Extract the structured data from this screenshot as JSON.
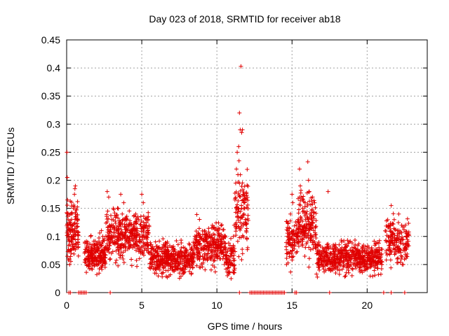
{
  "chart_data": {
    "type": "scatter",
    "title": "Day 023 of 2018, SRMTID for receiver ab18",
    "xlabel": "GPS time / hours",
    "ylabel": "SRMTID / TECUs",
    "xlim": [
      0,
      24
    ],
    "ylim": [
      0,
      0.45
    ],
    "xticks": [
      0,
      5,
      10,
      15,
      20
    ],
    "xtick_labels": [
      "0",
      "5",
      "10",
      "15",
      "20"
    ],
    "yticks": [
      0,
      0.05,
      0.1,
      0.15,
      0.2,
      0.25,
      0.3,
      0.35,
      0.4,
      0.45
    ],
    "ytick_labels": [
      "0",
      "0.05",
      "0.1",
      "0.15",
      "0.2",
      "0.25",
      "0.3",
      "0.35",
      "0.4",
      "0.45"
    ],
    "grid": true,
    "marker": "+",
    "marker_color": "#e00000",
    "series": [
      {
        "name": "SRMTID",
        "points": [
          [
            0.02,
            0.25
          ],
          [
            0.04,
            0.205
          ],
          [
            0.06,
            0.165
          ],
          [
            0.1,
            0.13
          ],
          [
            0.12,
            0.095
          ],
          [
            0.15,
            0.075
          ],
          [
            0.18,
            0.06
          ],
          [
            0.2,
            0.05
          ],
          [
            0.22,
            0.085
          ],
          [
            0.25,
            0.11
          ],
          [
            0.28,
            0.14
          ],
          [
            0.3,
            0.07
          ],
          [
            0.35,
            0.09
          ],
          [
            0.4,
            0.12
          ],
          [
            0.45,
            0.15
          ],
          [
            0.5,
            0.1
          ],
          [
            0.52,
            0.175
          ],
          [
            0.55,
            0.185
          ],
          [
            0.58,
            0.19
          ],
          [
            0.6,
            0.14
          ],
          [
            0.65,
            0.11
          ],
          [
            0.7,
            0.13
          ],
          [
            0.75,
            0.09
          ],
          [
            1.2,
            0.07
          ],
          [
            1.3,
            0.06
          ],
          [
            1.35,
            0.08
          ],
          [
            1.4,
            0.09
          ],
          [
            1.5,
            0.065
          ],
          [
            1.6,
            0.1
          ],
          [
            1.7,
            0.075
          ],
          [
            1.8,
            0.085
          ],
          [
            1.9,
            0.06
          ],
          [
            2.0,
            0.05
          ],
          [
            2.1,
            0.09
          ],
          [
            2.2,
            0.07
          ],
          [
            2.3,
            0.045
          ],
          [
            2.4,
            0.1
          ],
          [
            2.5,
            0.055
          ],
          [
            2.6,
            0.08
          ],
          [
            2.7,
            0.18
          ],
          [
            2.8,
            0.17
          ],
          [
            2.9,
            0.06
          ],
          [
            3.0,
            0.13
          ],
          [
            3.1,
            0.15
          ],
          [
            3.2,
            0.09
          ],
          [
            3.3,
            0.11
          ],
          [
            3.4,
            0.08
          ],
          [
            3.5,
            0.12
          ],
          [
            3.6,
            0.175
          ],
          [
            3.7,
            0.14
          ],
          [
            3.8,
            0.16
          ],
          [
            3.9,
            0.1
          ],
          [
            4.0,
            0.13
          ],
          [
            4.1,
            0.09
          ],
          [
            4.2,
            0.11
          ],
          [
            4.3,
            0.12
          ],
          [
            4.4,
            0.08
          ],
          [
            4.5,
            0.1
          ],
          [
            4.6,
            0.14
          ],
          [
            4.7,
            0.11
          ],
          [
            4.8,
            0.13
          ],
          [
            4.9,
            0.09
          ],
          [
            5.0,
            0.175
          ],
          [
            5.1,
            0.16
          ],
          [
            5.2,
            0.12
          ],
          [
            5.3,
            0.1
          ],
          [
            5.4,
            0.085
          ],
          [
            5.5,
            0.07
          ],
          [
            5.6,
            0.06
          ],
          [
            5.7,
            0.05
          ],
          [
            5.8,
            0.065
          ],
          [
            5.9,
            0.075
          ],
          [
            6.0,
            0.045
          ],
          [
            6.1,
            0.08
          ],
          [
            6.2,
            0.05
          ],
          [
            6.3,
            0.06
          ],
          [
            6.4,
            0.035
          ],
          [
            6.5,
            0.07
          ],
          [
            6.6,
            0.055
          ],
          [
            6.7,
            0.09
          ],
          [
            6.8,
            0.06
          ],
          [
            6.9,
            0.05
          ],
          [
            7.0,
            0.08
          ],
          [
            7.1,
            0.065
          ],
          [
            7.2,
            0.045
          ],
          [
            7.3,
            0.055
          ],
          [
            7.4,
            0.07
          ],
          [
            7.5,
            0.05
          ],
          [
            7.6,
            0.04
          ],
          [
            7.7,
            0.06
          ],
          [
            7.8,
            0.035
          ],
          [
            7.9,
            0.075
          ],
          [
            8.0,
            0.055
          ],
          [
            8.1,
            0.065
          ],
          [
            8.2,
            0.05
          ],
          [
            8.3,
            0.08
          ],
          [
            8.4,
            0.045
          ],
          [
            8.5,
            0.07
          ],
          [
            8.6,
            0.09
          ],
          [
            8.7,
            0.06
          ],
          [
            8.8,
            0.075
          ],
          [
            8.9,
            0.1
          ],
          [
            9.0,
            0.08
          ],
          [
            9.1,
            0.06
          ],
          [
            9.2,
            0.11
          ],
          [
            9.3,
            0.09
          ],
          [
            9.4,
            0.07
          ],
          [
            9.5,
            0.1
          ],
          [
            9.6,
            0.085
          ],
          [
            9.7,
            0.12
          ],
          [
            9.8,
            0.095
          ],
          [
            9.9,
            0.075
          ],
          [
            10.0,
            0.11
          ],
          [
            10.1,
            0.09
          ],
          [
            10.2,
            0.07
          ],
          [
            10.3,
            0.08
          ],
          [
            10.4,
            0.06
          ],
          [
            10.5,
            0.05
          ],
          [
            10.6,
            0.055
          ],
          [
            10.7,
            0.03
          ],
          [
            10.8,
            0.045
          ],
          [
            10.9,
            0.065
          ],
          [
            11.0,
            0.08
          ],
          [
            11.1,
            0.1
          ],
          [
            11.15,
            0.12
          ],
          [
            11.2,
            0.165
          ],
          [
            11.25,
            0.195
          ],
          [
            11.3,
            0.22
          ],
          [
            11.35,
            0.25
          ],
          [
            11.4,
            0.21
          ],
          [
            11.45,
            0.26
          ],
          [
            11.5,
            0.32
          ],
          [
            11.55,
            0.29
          ],
          [
            11.6,
            0.403
          ],
          [
            11.65,
            0.285
          ],
          [
            11.7,
            0.29
          ],
          [
            11.75,
            0.175
          ],
          [
            11.8,
            0.14
          ],
          [
            11.85,
            0.15
          ],
          [
            11.9,
            0.13
          ],
          [
            11.95,
            0.11
          ],
          [
            12.0,
            0.095
          ],
          [
            12.05,
            0.08
          ],
          [
            14.7,
            0.07
          ],
          [
            14.8,
            0.09
          ],
          [
            14.9,
            0.14
          ],
          [
            15.0,
            0.175
          ],
          [
            15.05,
            0.16
          ],
          [
            15.1,
            0.11
          ],
          [
            15.2,
            0.09
          ],
          [
            15.3,
            0.12
          ],
          [
            15.4,
            0.13
          ],
          [
            15.5,
            0.22
          ],
          [
            15.55,
            0.19
          ],
          [
            15.6,
            0.17
          ],
          [
            15.7,
            0.15
          ],
          [
            15.8,
            0.11
          ],
          [
            15.9,
            0.13
          ],
          [
            16.0,
            0.12
          ],
          [
            16.05,
            0.233
          ],
          [
            16.1,
            0.2
          ],
          [
            16.15,
            0.18
          ],
          [
            16.2,
            0.14
          ],
          [
            16.3,
            0.12
          ],
          [
            16.4,
            0.1
          ],
          [
            16.5,
            0.09
          ],
          [
            16.6,
            0.08
          ],
          [
            16.7,
            0.07
          ],
          [
            16.8,
            0.085
          ],
          [
            16.9,
            0.06
          ],
          [
            17.0,
            0.07
          ],
          [
            17.1,
            0.05
          ],
          [
            17.2,
            0.08
          ],
          [
            17.3,
            0.065
          ],
          [
            17.4,
            0.18
          ],
          [
            17.5,
            0.06
          ],
          [
            17.6,
            0.07
          ],
          [
            17.7,
            0.04
          ],
          [
            17.8,
            0.055
          ],
          [
            17.9,
            0.045
          ],
          [
            18.0,
            0.06
          ],
          [
            18.1,
            0.075
          ],
          [
            18.2,
            0.05
          ],
          [
            18.3,
            0.09
          ],
          [
            18.4,
            0.065
          ],
          [
            18.5,
            0.08
          ],
          [
            18.6,
            0.07
          ],
          [
            18.7,
            0.055
          ],
          [
            18.8,
            0.09
          ],
          [
            18.9,
            0.06
          ],
          [
            19.0,
            0.075
          ],
          [
            19.1,
            0.05
          ],
          [
            19.2,
            0.085
          ],
          [
            19.3,
            0.06
          ],
          [
            19.4,
            0.07
          ],
          [
            19.5,
            0.04
          ],
          [
            19.6,
            0.065
          ],
          [
            19.7,
            0.08
          ],
          [
            19.8,
            0.06
          ],
          [
            19.9,
            0.05
          ],
          [
            20.0,
            0.075
          ],
          [
            20.1,
            0.06
          ],
          [
            20.2,
            0.045
          ],
          [
            20.3,
            0.08
          ],
          [
            20.4,
            0.065
          ],
          [
            20.5,
            0.055
          ],
          [
            20.6,
            0.07
          ],
          [
            20.7,
            0.05
          ],
          [
            20.8,
            0.065
          ],
          [
            21.2,
            0.11
          ],
          [
            21.3,
            0.09
          ],
          [
            21.4,
            0.12
          ],
          [
            21.5,
            0.08
          ],
          [
            21.6,
            0.155
          ],
          [
            21.7,
            0.1
          ],
          [
            21.8,
            0.13
          ],
          [
            21.9,
            0.07
          ],
          [
            22.0,
            0.06
          ],
          [
            22.1,
            0.14
          ],
          [
            22.2,
            0.09
          ],
          [
            22.3,
            0.12
          ],
          [
            22.4,
            0.05
          ],
          [
            22.5,
            0.075
          ],
          [
            22.6,
            0.1
          ],
          [
            22.7,
            0.085
          ]
        ]
      },
      {
        "name": "zero-value markers",
        "points": [
          [
            0.15,
            0
          ],
          [
            0.25,
            0
          ],
          [
            0.8,
            0
          ],
          [
            0.9,
            0
          ],
          [
            1.0,
            0
          ],
          [
            1.1,
            0
          ],
          [
            1.2,
            0
          ],
          [
            1.3,
            0
          ],
          [
            2.9,
            0
          ],
          [
            11.5,
            0
          ],
          [
            12.2,
            0
          ],
          [
            12.3,
            0
          ],
          [
            12.4,
            0
          ],
          [
            12.5,
            0
          ],
          [
            12.6,
            0
          ],
          [
            12.7,
            0
          ],
          [
            12.8,
            0
          ],
          [
            12.9,
            0
          ],
          [
            13.0,
            0
          ],
          [
            13.1,
            0
          ],
          [
            13.2,
            0
          ],
          [
            13.3,
            0
          ],
          [
            13.4,
            0
          ],
          [
            13.5,
            0
          ],
          [
            13.6,
            0
          ],
          [
            13.7,
            0
          ],
          [
            13.8,
            0
          ],
          [
            13.9,
            0
          ],
          [
            14.0,
            0
          ],
          [
            14.1,
            0
          ],
          [
            14.2,
            0
          ],
          [
            14.3,
            0
          ],
          [
            14.4,
            0
          ],
          [
            14.5,
            0
          ],
          [
            15.2,
            0
          ],
          [
            15.3,
            0
          ],
          [
            17.5,
            0
          ],
          [
            21.1,
            0
          ],
          [
            21.6,
            0
          ],
          [
            22.5,
            0
          ]
        ]
      }
    ],
    "bands": [
      {
        "x_start": 0.0,
        "x_end": 0.8,
        "center": 0.11,
        "spread": 0.05,
        "count": 120
      },
      {
        "x_start": 1.2,
        "x_end": 2.6,
        "center": 0.068,
        "spread": 0.03,
        "count": 200
      },
      {
        "x_start": 2.6,
        "x_end": 5.5,
        "center": 0.1,
        "spread": 0.04,
        "count": 380
      },
      {
        "x_start": 5.5,
        "x_end": 8.5,
        "center": 0.06,
        "spread": 0.025,
        "count": 380
      },
      {
        "x_start": 8.5,
        "x_end": 10.6,
        "center": 0.085,
        "spread": 0.035,
        "count": 260
      },
      {
        "x_start": 10.6,
        "x_end": 11.2,
        "center": 0.06,
        "spread": 0.03,
        "count": 70
      },
      {
        "x_start": 11.2,
        "x_end": 12.1,
        "center": 0.14,
        "spread": 0.07,
        "count": 110
      },
      {
        "x_start": 14.6,
        "x_end": 15.4,
        "center": 0.09,
        "spread": 0.04,
        "count": 90
      },
      {
        "x_start": 15.4,
        "x_end": 16.6,
        "center": 0.12,
        "spread": 0.05,
        "count": 170
      },
      {
        "x_start": 16.6,
        "x_end": 21.0,
        "center": 0.062,
        "spread": 0.025,
        "count": 520
      },
      {
        "x_start": 21.2,
        "x_end": 22.8,
        "center": 0.09,
        "spread": 0.035,
        "count": 160
      }
    ]
  }
}
